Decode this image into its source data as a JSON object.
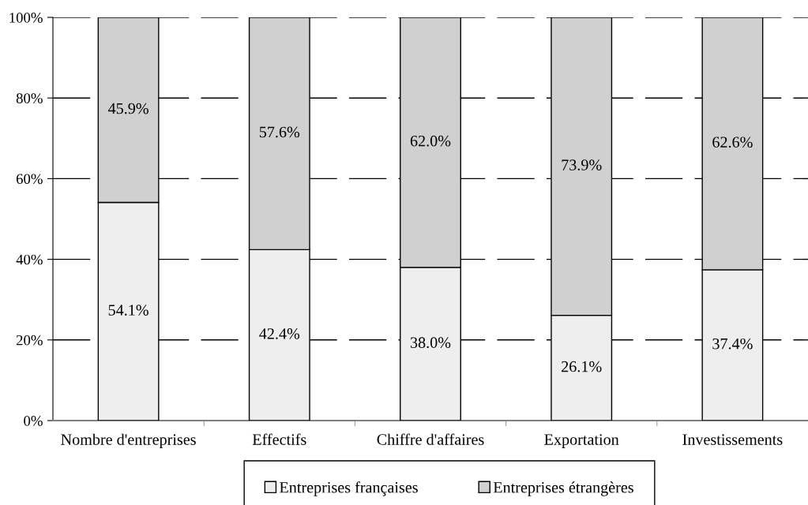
{
  "chart_data": {
    "type": "bar",
    "stacked": true,
    "categories": [
      "Nombre d'entreprises",
      "Effectifs",
      "Chiffre d'affaires",
      "Exportation",
      "Investissements"
    ],
    "series": [
      {
        "name": "Entreprises françaises",
        "color": "#eeeeee",
        "values": [
          54.1,
          42.4,
          38.0,
          26.1,
          37.4
        ],
        "value_labels": [
          "54.1%",
          "42.4%",
          "38.0%",
          "26.1%",
          "37.4%"
        ]
      },
      {
        "name": "Entreprises étrangères",
        "color": "#d0d0d0",
        "values": [
          45.9,
          57.6,
          62.0,
          73.9,
          62.6
        ],
        "value_labels": [
          "45.9%",
          "57.6%",
          "62.0%",
          "73.9%",
          "62.6%"
        ]
      }
    ],
    "ylim": [
      0,
      100
    ],
    "yticks": [
      {
        "value": 0,
        "label": "0%"
      },
      {
        "value": 20,
        "label": "20%"
      },
      {
        "value": 40,
        "label": "40%"
      },
      {
        "value": 60,
        "label": "60%"
      },
      {
        "value": 80,
        "label": "80%"
      },
      {
        "value": 100,
        "label": "100%"
      }
    ],
    "grid": "y",
    "legend": "bottom"
  }
}
